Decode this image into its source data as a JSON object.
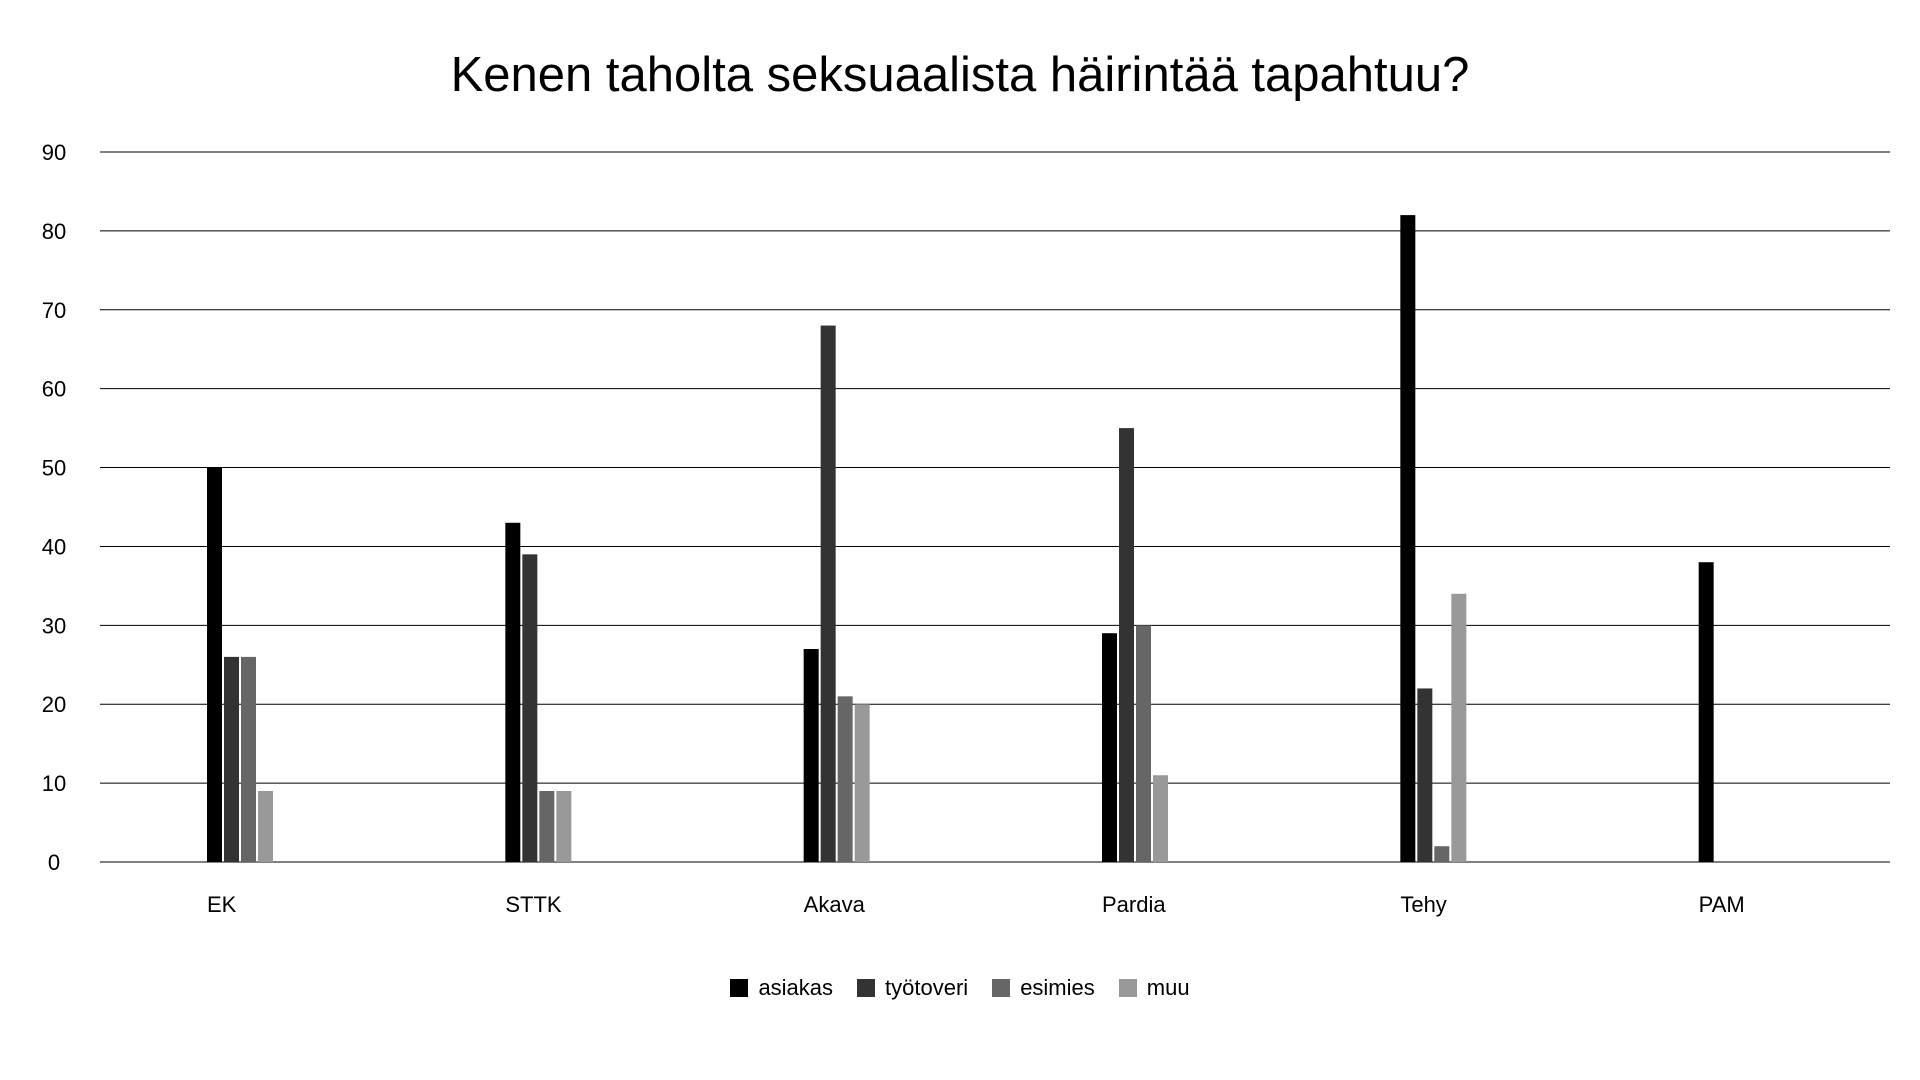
{
  "chart_data": {
    "type": "bar",
    "title": "Kenen taholta seksuaalista häirintää tapahtuu?",
    "xlabel": "",
    "ylabel": "",
    "categories": [
      "EK",
      "STTK",
      "Akava",
      "Pardia",
      "Tehy",
      "PAM"
    ],
    "ylim": [
      0,
      90
    ],
    "yticks": [
      0,
      10,
      20,
      30,
      40,
      50,
      60,
      70,
      80,
      90
    ],
    "grid": true,
    "legend_position": "bottom",
    "series": [
      {
        "name": "asiakas",
        "color": "#000000",
        "values": [
          50,
          43,
          27,
          29,
          82,
          38
        ]
      },
      {
        "name": "työtoveri",
        "color": "#333333",
        "values": [
          26,
          39,
          68,
          55,
          22,
          0
        ]
      },
      {
        "name": "esimies",
        "color": "#666666",
        "values": [
          26,
          9,
          21,
          30,
          2,
          0
        ]
      },
      {
        "name": "muu",
        "color": "#999999",
        "values": [
          9,
          9,
          20,
          11,
          34,
          0
        ]
      }
    ]
  }
}
